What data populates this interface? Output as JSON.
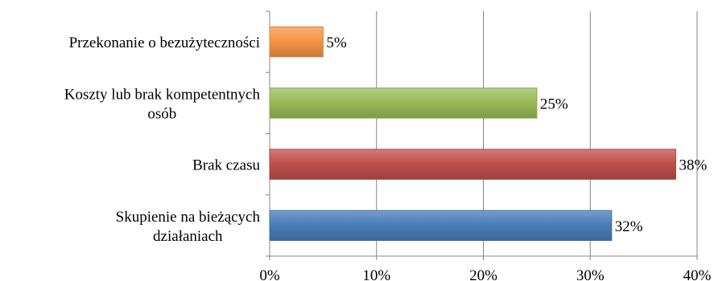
{
  "chart_data": {
    "type": "bar",
    "orientation": "horizontal",
    "title": "",
    "xlabel": "",
    "ylabel": "",
    "categories": [
      [
        "Skupienie na bieżących",
        "działaniach"
      ],
      [
        "Brak czasu"
      ],
      [
        "Koszty lub brak kompetentnych",
        "osób"
      ],
      [
        "Przekonanie o bezużyteczności"
      ]
    ],
    "values": [
      32,
      38,
      25,
      5
    ],
    "value_labels": [
      "32%",
      "38%",
      "25%",
      "5%"
    ],
    "colors": [
      "#4a7ebb",
      "#c0504d",
      "#9bbb59",
      "#f79646"
    ],
    "xlim": [
      0,
      40
    ],
    "xticks": [
      0,
      10,
      20,
      30,
      40
    ],
    "xtick_labels": [
      "0%",
      "10%",
      "20%",
      "30%",
      "40%"
    ],
    "grid": true,
    "legend": false
  }
}
